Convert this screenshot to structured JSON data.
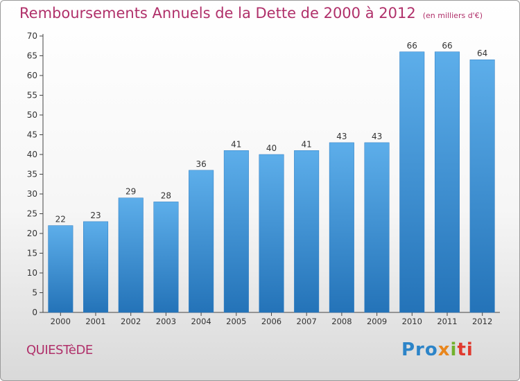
{
  "chart_data": {
    "type": "bar",
    "title": "Remboursements Annuels de la Dette de 2000 à 2012",
    "unit_label": "(en milliers d'€)",
    "categories": [
      "2000",
      "2001",
      "2002",
      "2003",
      "2004",
      "2005",
      "2006",
      "2007",
      "2008",
      "2009",
      "2010",
      "2011",
      "2012"
    ],
    "values": [
      22,
      23,
      29,
      28,
      36,
      41,
      40,
      41,
      43,
      43,
      66,
      66,
      64
    ],
    "ylim": [
      0,
      70
    ],
    "yticks": [
      0,
      5,
      10,
      15,
      20,
      25,
      30,
      35,
      40,
      45,
      50,
      55,
      60,
      65,
      70
    ],
    "xlabel": "",
    "ylabel": "",
    "grid": false,
    "bar_color": "#3a8fd6"
  },
  "footer": {
    "commune": "QUIESTèDE",
    "logo": {
      "p1": "Pro",
      "p2": "x",
      "p3": "i",
      "p4": "ti"
    }
  }
}
